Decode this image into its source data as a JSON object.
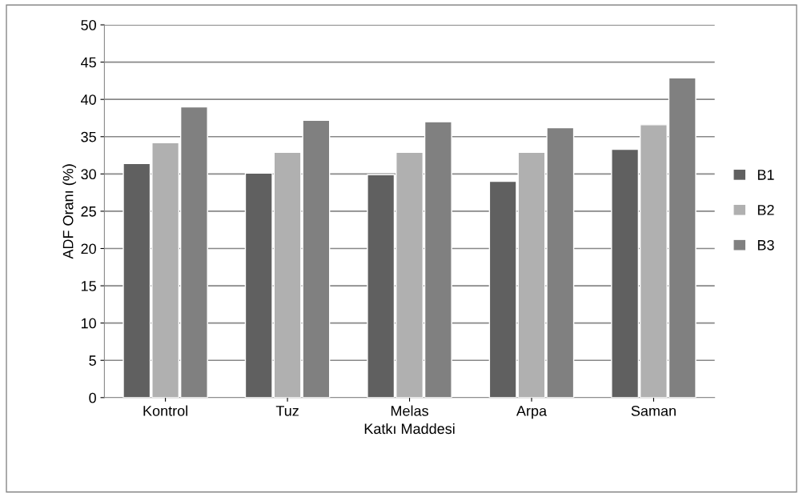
{
  "chart_data": {
    "type": "bar",
    "xlabel": "Katkı Maddesi",
    "ylabel": "ADF Oranı (%)",
    "categories": [
      "Kontrol",
      "Tuz",
      "Melas",
      "Arpa",
      "Saman"
    ],
    "series": [
      {
        "name": "B1",
        "color": "#606060",
        "values": [
          31.4,
          30.1,
          29.9,
          29.0,
          33.3
        ]
      },
      {
        "name": "B2",
        "color": "#b0b0b0",
        "values": [
          34.2,
          32.9,
          32.9,
          32.9,
          36.6
        ]
      },
      {
        "name": "B3",
        "color": "#808080",
        "values": [
          39.0,
          37.2,
          37.0,
          36.2,
          42.9
        ]
      }
    ],
    "ylim": [
      0,
      50
    ],
    "yticks": [
      0,
      5,
      10,
      15,
      20,
      25,
      30,
      35,
      40,
      45,
      50
    ],
    "grid": "y",
    "legend": "right"
  }
}
